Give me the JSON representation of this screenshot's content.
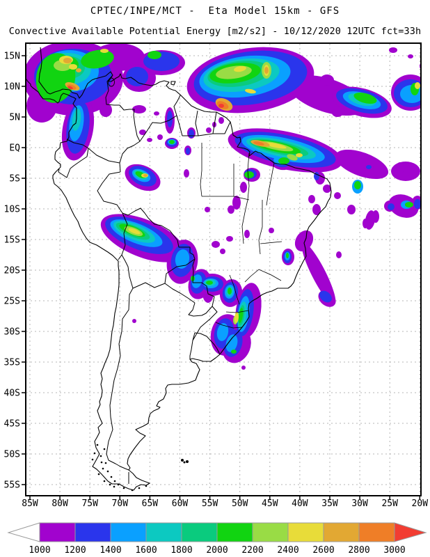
{
  "header": {
    "title": "CPTEC/INPE/MCT -  Eta Model 15km - GFS",
    "subtitle": "Convective Available Potential Energy [m2/s2] - 10/12/2020 12UTC fct=33h"
  },
  "map": {
    "lat_labels": [
      "15N",
      "10N",
      "5N",
      "EQ",
      "5S",
      "10S",
      "15S",
      "20S",
      "25S",
      "30S",
      "35S",
      "40S",
      "45S",
      "50S",
      "55S"
    ],
    "lon_labels": [
      "85W",
      "80W",
      "75W",
      "70W",
      "65W",
      "60W",
      "55W",
      "50W",
      "45W",
      "40W",
      "35W",
      "30W",
      "25W",
      "20W"
    ]
  },
  "colorbar": {
    "tick_labels": [
      "1000",
      "1200",
      "1400",
      "1600",
      "1800",
      "2000",
      "2200",
      "2400",
      "2600",
      "2800",
      "3000"
    ],
    "segment_colors": [
      "#a103ce",
      "#2a35ec",
      "#0aa0ff",
      "#0cc9c1",
      "#0acb7e",
      "#11d411",
      "#99dc45",
      "#e8dc39",
      "#e2a833",
      "#ef7e27"
    ],
    "underflow_color": "#ffffff",
    "overflow_color": "#f23d32",
    "outline_color": "#999999"
  }
}
